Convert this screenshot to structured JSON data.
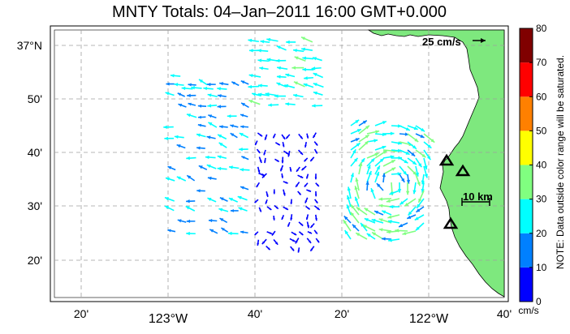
{
  "title": "MNTY Totals: 04–Jan–2011 16:00 GMT+0.000",
  "lat_labels": [
    "37°N",
    "50'",
    "40'",
    "30'",
    "20'"
  ],
  "lon_labels": [
    "20'",
    "123°W",
    "40'",
    "20'",
    "122°W",
    "40'"
  ],
  "scale_arrow_label": "25 cm/s",
  "distance_scale_label": "10 km",
  "colorbar": {
    "ticks": [
      "0",
      "10",
      "20",
      "30",
      "40",
      "50",
      "60",
      "70",
      "80"
    ],
    "unit": "cm/s",
    "note": "NOTE: Data outside color range will be saturated.",
    "colors": [
      "#0000ff",
      "#0080ff",
      "#00ffff",
      "#80ff80",
      "#ffff00",
      "#ff8000",
      "#ff0000",
      "#800000"
    ]
  },
  "colors": {
    "land": "#7ee87e",
    "grid": "#a0a0a0",
    "station": "#000000"
  },
  "stations_count": 3
}
